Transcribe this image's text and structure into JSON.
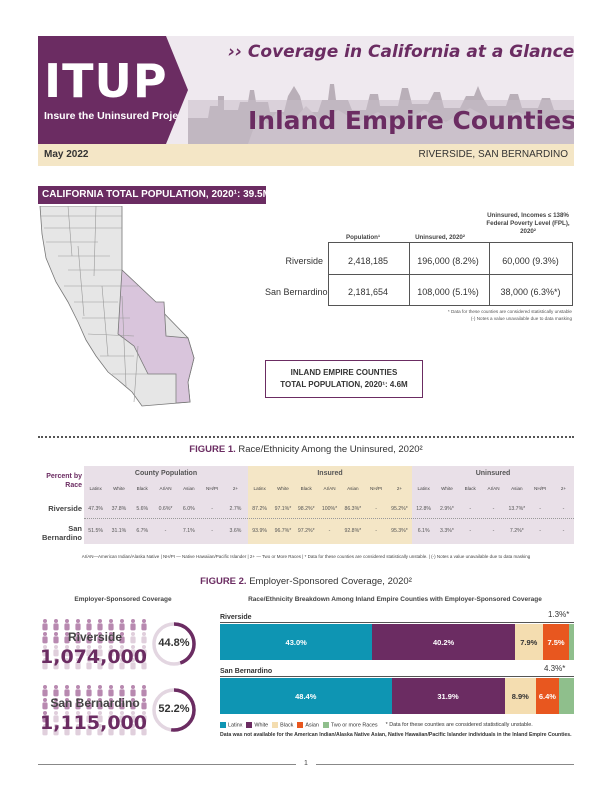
{
  "header": {
    "logo_text": "ITUP",
    "logo_tagline": "Insure the Uninsured Project",
    "subtitle": "›› Coverage in California at a Glance",
    "title": "Inland Empire Counties",
    "date": "May 2022",
    "counties": "RIVERSIDE, SAN BERNARDINO"
  },
  "population": {
    "banner": "CALIFORNIA TOTAL POPULATION, 2020¹: 39.5M",
    "table": {
      "headers": [
        "Population¹",
        "Uninsured, 2020²",
        "Uninsured, Incomes ≤ 138% Federal Poverty Level (FPL), 2020²"
      ],
      "rows": [
        {
          "county": "Riverside",
          "population": "2,418,185",
          "uninsured": "196,000 (8.2%)",
          "uninsured_fpl": "60,000 (9.3%)"
        },
        {
          "county": "San Bernardino",
          "population": "2,181,654",
          "uninsured": "108,000 (5.1%)",
          "uninsured_fpl": "38,000 (6.3%*)"
        }
      ]
    },
    "notes": [
      "* Data for these counties are considered statistically unstable",
      "(-) Notes a value unavailable due to data masking"
    ],
    "ie_box_line1": "INLAND EMPIRE COUNTIES",
    "ie_box_line2": "TOTAL POPULATION, 2020¹: 4.6M"
  },
  "figure1": {
    "title_prefix": "FIGURE 1.",
    "title_rest": " Race/Ethnicity Among the Uninsured, 2020²",
    "corner_label": "Percent by Race",
    "groups": [
      "County Population",
      "Insured",
      "Uninsured"
    ],
    "columns": [
      "Latinx",
      "White",
      "Black",
      "AI/AN",
      "Asian",
      "NH/PI",
      "2+"
    ],
    "rows": [
      {
        "label": "Riverside",
        "county_population": [
          "47.3%",
          "37.8%",
          "5.6%",
          "0.6%*",
          "6.0%",
          "-",
          "2.7%"
        ],
        "insured": [
          "87.2%",
          "97.1%*",
          "98.2%*",
          "100%*",
          "86.3%*",
          "-",
          "95.2%*"
        ],
        "uninsured": [
          "12.8%",
          "2.9%*",
          "-",
          "-",
          "13.7%*",
          "-",
          "-"
        ]
      },
      {
        "label": "San Bernardino",
        "county_population": [
          "51.5%",
          "31.1%",
          "6.7%",
          "-",
          "7.1%",
          "-",
          "3.6%"
        ],
        "insured": [
          "93.9%",
          "96.7%*",
          "97.2%*",
          "-",
          "92.8%*",
          "-",
          "95.3%*"
        ],
        "uninsured": [
          "6.1%",
          "3.3%*",
          "-",
          "-",
          "7.2%*",
          "-",
          "-"
        ]
      }
    ],
    "note": "AI/AN—American Indian/Alaska Native | NH/PI — Native Hawaiian/Pacific Islander | 2+ — Two or More Races | * Data for these counties are considered statistically unstable. | (-) Notes a value unavailable due to data masking"
  },
  "figure2": {
    "title_prefix": "FIGURE 2.",
    "title_rest": " Employer-Sponsored Coverage, 2020²",
    "left_heading": "Employer-Sponsored Coverage",
    "right_heading": "Race/Ethnicity Breakdown Among Inland Empire Counties with Employer-Sponsored Coverage",
    "counties": [
      {
        "name": "Riverside",
        "count": "1,074,000",
        "percent_label": "44.8%",
        "percent": 44.8
      },
      {
        "name": "San Bernardino",
        "count": "1,115,000",
        "percent_label": "52.2%",
        "percent": 52.2
      }
    ],
    "legend": [
      {
        "name": "Latinx",
        "color": "#0e95b3"
      },
      {
        "name": "White",
        "color": "#6b2c62"
      },
      {
        "name": "Black",
        "color": "#f4ddb0"
      },
      {
        "name": "Asian",
        "color": "#e8571f"
      },
      {
        "name": "Two or more Races",
        "color": "#8fbf8c"
      }
    ],
    "legend_note": "* Data for these counties are considered statistically unstable.",
    "bottom_note": "Data was not available for the American Indian/Alaska Native Asian, Native Hawaiian/Pacific Islander individuals in the Inland Empire Counties.",
    "bars": [
      {
        "county": "Riverside",
        "values": [
          43.0,
          40.2,
          7.9,
          7.5,
          1.3
        ],
        "labels": [
          "43.0%",
          "40.2%",
          "7.9%",
          "7.5%",
          ""
        ],
        "callout": "1.3%*"
      },
      {
        "county": "San Bernardino",
        "values": [
          48.4,
          31.9,
          8.9,
          6.4,
          4.3
        ],
        "labels": [
          "48.4%",
          "31.9%",
          "8.9%",
          "6.4%",
          ""
        ],
        "callout": "4.3%*"
      }
    ]
  },
  "page_number": "1",
  "colors": {
    "brand": "#6b2c62",
    "cream": "#f4e6c6",
    "map_highlight": "#d9c5dc"
  }
}
